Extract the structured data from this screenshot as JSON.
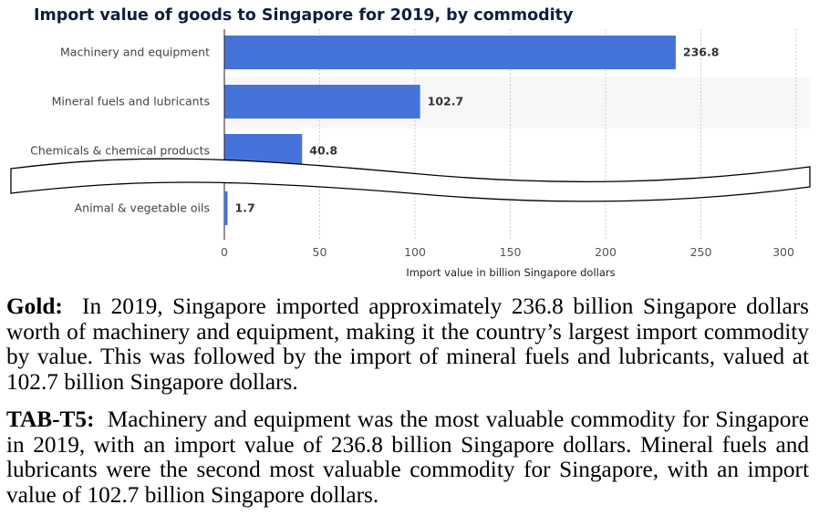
{
  "chart_data": {
    "type": "bar",
    "orientation": "horizontal",
    "title": "Import value of goods to Singapore for 2019, by commodity",
    "categories": [
      "Machinery and equipment",
      "Mineral fuels and lubricants",
      "Chemicals & chemical products",
      "Animal & vegetable oils"
    ],
    "values": [
      236.8,
      102.7,
      40.8,
      1.7
    ],
    "value_labels": [
      "236.8",
      "102.7",
      "40.8",
      "1.7"
    ],
    "xlabel": "Import value in billion Singapore dollars",
    "xlim": [
      0,
      300
    ],
    "xticks": [
      "0",
      "50",
      "100",
      "150",
      "200",
      "250",
      "300"
    ],
    "grid": true,
    "axis_break": "between Chemicals & chemical products and Animal & vegetable oils",
    "bar_color": "#4573d9"
  },
  "captions": [
    {
      "label": "Gold:",
      "text": "In 2019, Singapore imported approximately 236.8 billion Singapore dollars worth of machinery and equipment, making it the country’s largest import commodity by value. This was followed by the import of mineral fuels and lubricants, valued at 102.7 billion Singapore dollars."
    },
    {
      "label": "TAB-T5:",
      "text": "Machinery and equipment was the most valuable commodity for Singapore in 2019, with an import value of 236.8 billion Singapore dollars. Mineral fuels and lubricants were the second most valuable commodity for Singapore, with an import value of 102.7 billion Singapore dollars."
    }
  ]
}
